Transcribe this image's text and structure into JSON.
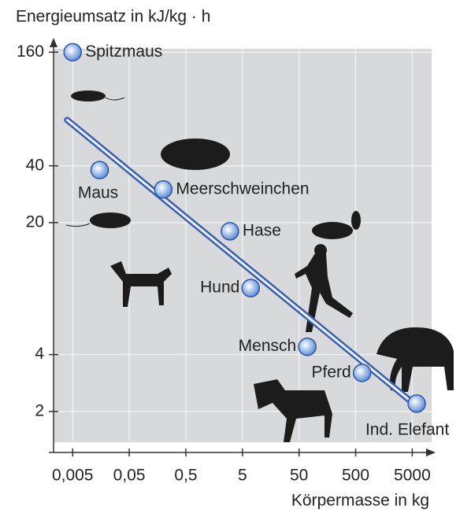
{
  "chart_data": {
    "type": "scatter",
    "title": "Energieumsatz in kJ/kg · h",
    "x_label": "Körpermasse in kg",
    "x_scale": "log",
    "y_scale": "log",
    "grid": true,
    "labels": [
      "Spitzmaus",
      "Maus",
      "Meerschweinchen",
      "Hase",
      "Hund",
      "Mensch",
      "Pferd",
      "Ind. Elefant"
    ],
    "x": [
      0.005,
      0.015,
      0.2,
      3,
      7,
      70,
      650,
      6000
    ],
    "values": [
      160,
      38,
      30,
      18,
      9,
      4.4,
      3.2,
      2.2
    ],
    "color": "#7fa6e0",
    "trend": {
      "x": [
        0.004,
        5300
      ],
      "y": [
        70,
        2.2
      ],
      "color": "#3a5fb0"
    },
    "xlim": [
      0.0023,
      11000
    ],
    "ylim": [
      1.4,
      170
    ],
    "xticks": [
      {
        "value": 0.005,
        "label": "0,005"
      },
      {
        "value": 0.05,
        "label": "0,05"
      },
      {
        "value": 0.5,
        "label": "0,5"
      },
      5,
      50,
      500,
      5000
    ],
    "yticks": [
      2,
      4,
      20,
      40,
      160
    ]
  }
}
